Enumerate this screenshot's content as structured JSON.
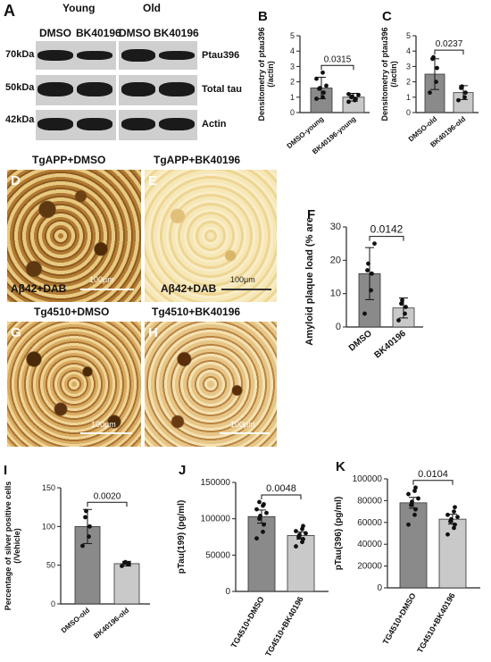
{
  "panel_letters": {
    "A": "A",
    "B": "B",
    "C": "C",
    "D": "D",
    "E": "E",
    "F": "F",
    "G": "G",
    "H": "H",
    "I": "I",
    "J": "J",
    "K": "K"
  },
  "western": {
    "group_young": "Young",
    "group_old": "Old",
    "lane_labels": [
      "DMSO",
      "BK40196",
      "DMSO",
      "BK40196"
    ],
    "kda": [
      "70kDa",
      "50kDa",
      "42kDa"
    ],
    "proteins": [
      "Ptau396",
      "Total tau",
      "Actin"
    ]
  },
  "micrographs": {
    "D_title": "TgAPP+DMSO",
    "E_title": "TgAPP+BK40196",
    "G_title": "Tg4510+DMSO",
    "H_title": "Tg4510+BK40196",
    "stain": "Aβ42+DAB",
    "scale": "100μm"
  },
  "colors": {
    "bar_dark": "#8a8a8a",
    "bar_light": "#c9c9c9",
    "dot": "#111111",
    "plaque_dense": "#7a4a14",
    "plaque_light": "#f2dfa4"
  },
  "chart_data": [
    {
      "id": "B",
      "type": "bar",
      "categories": [
        "DMSO-young",
        "BK40196-young"
      ],
      "values": [
        1.6,
        1.0
      ],
      "errors": [
        0.7,
        0.25
      ],
      "points": [
        [
          0.9,
          1.0,
          1.3,
          1.55,
          1.6,
          1.75,
          2.2,
          2.6
        ],
        [
          0.7,
          0.8,
          0.9,
          1.0,
          1.05,
          1.15,
          1.2
        ]
      ],
      "ylabel": "Densitometry of ptau396\n(/actin)",
      "yticks": [
        0,
        1,
        2,
        3,
        4,
        5
      ],
      "ylim": [
        0,
        5
      ],
      "pvalue": "0.0315"
    },
    {
      "id": "C",
      "type": "bar",
      "categories": [
        "DMSO-old",
        "BK40196-old"
      ],
      "values": [
        2.5,
        1.3
      ],
      "errors": [
        1.0,
        0.45
      ],
      "points": [
        [
          1.3,
          2.0,
          2.9,
          3.5,
          3.6
        ],
        [
          0.8,
          1.0,
          1.3,
          1.6,
          1.7
        ]
      ],
      "ylabel": "Densitometry of ptau396\n(/actin)",
      "yticks": [
        0,
        1,
        2,
        3,
        4,
        5
      ],
      "ylim": [
        0,
        5
      ],
      "pvalue": "0.0237"
    },
    {
      "id": "F",
      "type": "bar",
      "categories": [
        "DMSO",
        "BK40196"
      ],
      "values": [
        16,
        5.7
      ],
      "errors": [
        7.8,
        3.0
      ],
      "points": [
        [
          4,
          11,
          16,
          17,
          19,
          25
        ],
        [
          2,
          4,
          6,
          7,
          8
        ]
      ],
      "ylabel": "Amyloid plaque load (% area)",
      "yticks": [
        0,
        10,
        20,
        30
      ],
      "ylim": [
        0,
        30
      ],
      "pvalue": "0.0142"
    },
    {
      "id": "I",
      "type": "bar",
      "categories": [
        "DMSO-old",
        "BK40196-old"
      ],
      "values": [
        100,
        52
      ],
      "errors": [
        22,
        3
      ],
      "points": [
        [
          75,
          87,
          100,
          112,
          120
        ],
        [
          49,
          51,
          52,
          53,
          54
        ]
      ],
      "ylabel": "Percentage of silver positive cells\n(/Vehicle)",
      "yticks": [
        0,
        50,
        100,
        150
      ],
      "ylim": [
        0,
        150
      ],
      "pvalue": "0.0020"
    },
    {
      "id": "J",
      "type": "bar",
      "categories": [
        "TG4510+DMSO",
        "TG4510+BK40196"
      ],
      "values": [
        103000,
        77000
      ],
      "errors": [
        9000,
        5000
      ],
      "points": [
        [
          73000,
          82000,
          92000,
          100000,
          104000,
          108000,
          113000,
          118000,
          120000,
          123000
        ],
        [
          62000,
          68000,
          72000,
          75000,
          78000,
          80000,
          83000,
          86000,
          90000
        ]
      ],
      "ylabel": "pTau(199) (pg/ml)",
      "yticks": [
        0,
        50000,
        100000,
        150000
      ],
      "ylim": [
        0,
        150000
      ],
      "pvalue": "0.0048"
    },
    {
      "id": "K",
      "type": "bar",
      "categories": [
        "TG4510+DMSO",
        "TG4510+BK40196"
      ],
      "values": [
        78000,
        63000
      ],
      "errors": [
        5000,
        4500
      ],
      "points": [
        [
          58000,
          67000,
          72000,
          76000,
          79000,
          82000,
          86000,
          89000,
          92000
        ],
        [
          49000,
          55000,
          58000,
          61000,
          63000,
          65000,
          67000,
          70000,
          74000
        ]
      ],
      "ylabel": "pTau(396) (pg/ml)",
      "yticks": [
        0,
        20000,
        40000,
        60000,
        80000,
        100000
      ],
      "ylim": [
        0,
        100000
      ],
      "pvalue": "0.0104"
    }
  ]
}
